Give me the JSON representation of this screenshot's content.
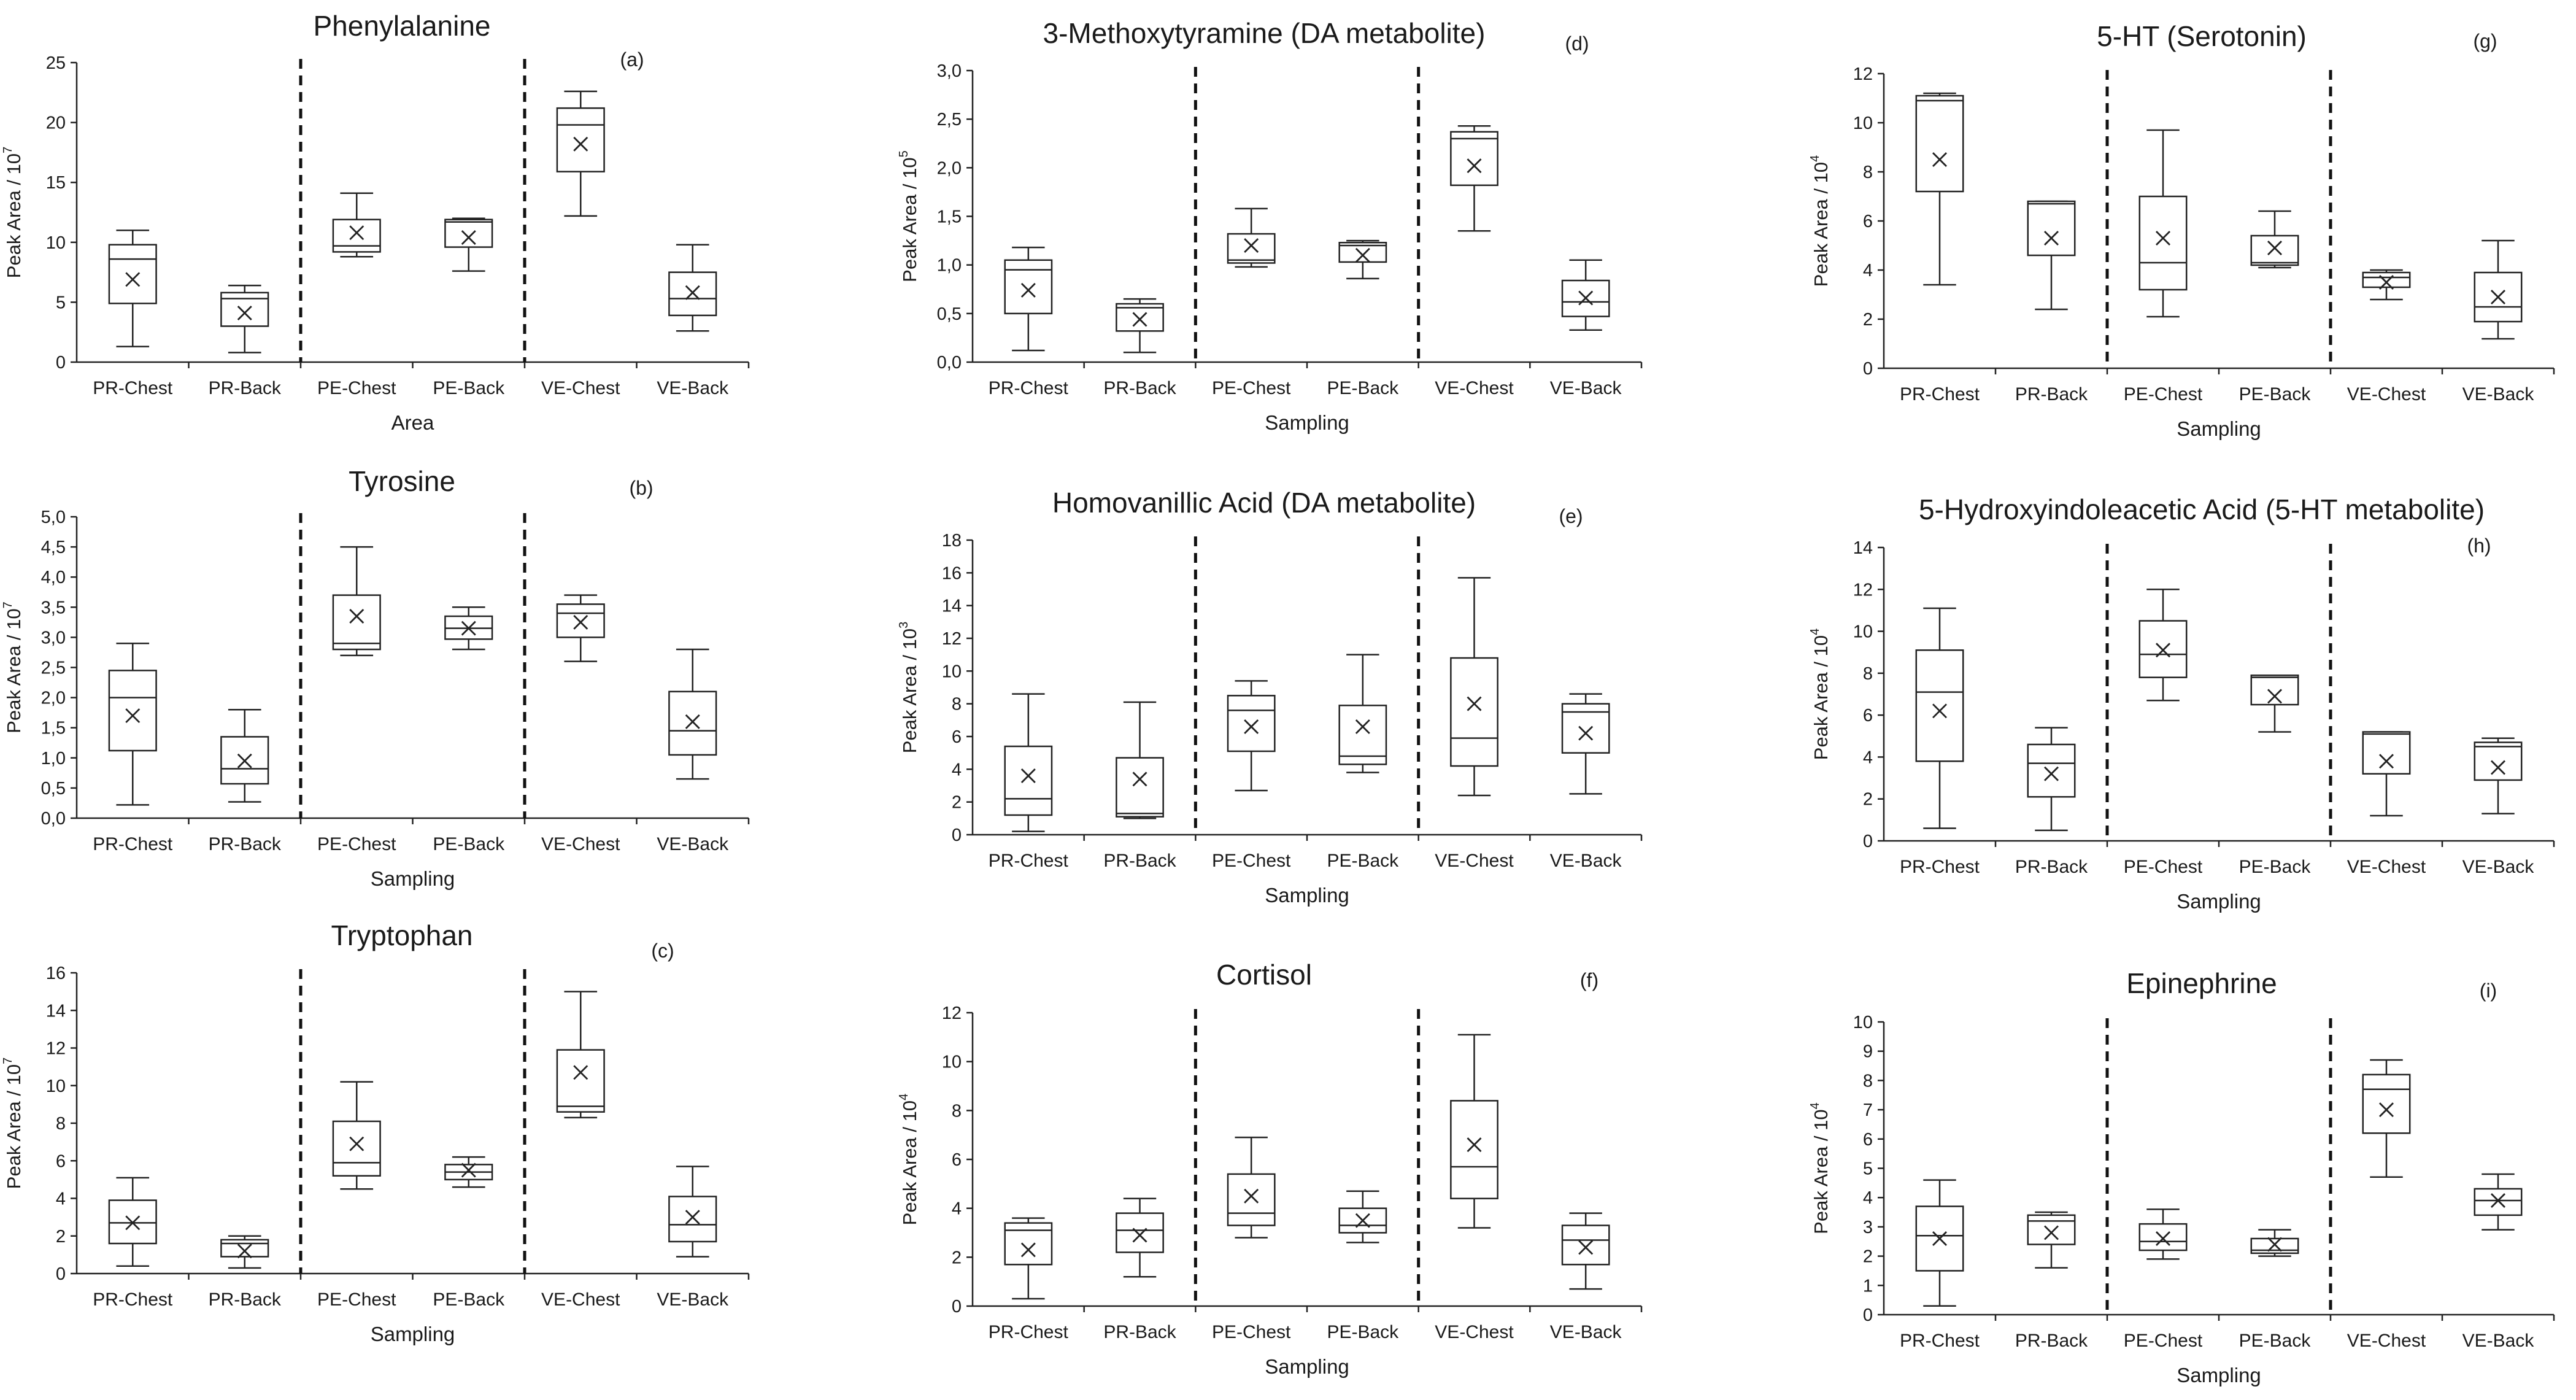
{
  "chart_data": [
    {
      "type": "box",
      "id": "phenylalanine",
      "title": "Phenylalanine",
      "panel": "(a)",
      "xlabel": "Area",
      "ylabel_base": "Peak Area / 10",
      "ylabel_exp": "7",
      "ylim": [
        0,
        25
      ],
      "yticks": [
        "0",
        "5",
        "10",
        "15",
        "20",
        "25"
      ],
      "categories": [
        "PR-Chest",
        "PR-Back",
        "PE-Chest",
        "PE-Back",
        "VE-Chest",
        "VE-Back"
      ],
      "boxes": [
        {
          "min": 1.3,
          "q1": 4.9,
          "median": 8.6,
          "q3": 9.8,
          "max": 11.0,
          "mean": 6.9
        },
        {
          "min": 0.8,
          "q1": 3.0,
          "median": 5.3,
          "q3": 5.8,
          "max": 6.4,
          "mean": 4.1
        },
        {
          "min": 8.8,
          "q1": 9.2,
          "median": 9.7,
          "q3": 11.9,
          "max": 14.1,
          "mean": 10.8
        },
        {
          "min": 7.6,
          "q1": 9.6,
          "median": 11.7,
          "q3": 11.9,
          "max": 12.0,
          "mean": 10.4
        },
        {
          "min": 12.2,
          "q1": 15.9,
          "median": 19.8,
          "q3": 21.2,
          "max": 22.6,
          "mean": 18.2
        },
        {
          "min": 2.6,
          "q1": 3.9,
          "median": 5.3,
          "q3": 7.5,
          "max": 9.8,
          "mean": 5.8
        }
      ]
    },
    {
      "type": "box",
      "id": "tyrosine",
      "title": "Tyrosine",
      "panel": "(b)",
      "xlabel": "Sampling",
      "ylabel_base": "Peak Area / 10",
      "ylabel_exp": "7",
      "ylim": [
        0,
        5.0
      ],
      "yticks": [
        "0,0",
        "0,5",
        "1,0",
        "1,5",
        "2,0",
        "2,5",
        "3,0",
        "3,5",
        "4,0",
        "4,5",
        "5,0"
      ],
      "categories": [
        "PR-Chest",
        "PR-Back",
        "PE-Chest",
        "PE-Back",
        "VE-Chest",
        "VE-Back"
      ],
      "boxes": [
        {
          "min": 0.22,
          "q1": 1.12,
          "median": 2.0,
          "q3": 2.45,
          "max": 2.9,
          "mean": 1.7
        },
        {
          "min": 0.27,
          "q1": 0.57,
          "median": 0.82,
          "q3": 1.35,
          "max": 1.8,
          "mean": 0.95
        },
        {
          "min": 2.7,
          "q1": 2.8,
          "median": 2.9,
          "q3": 3.7,
          "max": 4.5,
          "mean": 3.35
        },
        {
          "min": 2.8,
          "q1": 2.97,
          "median": 3.15,
          "q3": 3.35,
          "max": 3.5,
          "mean": 3.15
        },
        {
          "min": 2.6,
          "q1": 3.0,
          "median": 3.4,
          "q3": 3.55,
          "max": 3.7,
          "mean": 3.25
        },
        {
          "min": 0.65,
          "q1": 1.05,
          "median": 1.45,
          "q3": 2.1,
          "max": 2.8,
          "mean": 1.6
        }
      ]
    },
    {
      "type": "box",
      "id": "tryptophan",
      "title": "Tryptophan",
      "panel": "(c)",
      "xlabel": "Sampling",
      "ylabel_base": "Peak Area / 10",
      "ylabel_exp": "7",
      "ylim": [
        0,
        16
      ],
      "yticks": [
        "0",
        "2",
        "4",
        "6",
        "8",
        "10",
        "12",
        "14",
        "16"
      ],
      "categories": [
        "PR-Chest",
        "PR-Back",
        "PE-Chest",
        "PE-Back",
        "VE-Chest",
        "VE-Back"
      ],
      "boxes": [
        {
          "min": 0.4,
          "q1": 1.6,
          "median": 2.7,
          "q3": 3.9,
          "max": 5.1,
          "mean": 2.7
        },
        {
          "min": 0.3,
          "q1": 0.9,
          "median": 1.6,
          "q3": 1.8,
          "max": 2.0,
          "mean": 1.2
        },
        {
          "min": 4.5,
          "q1": 5.2,
          "median": 5.9,
          "q3": 8.1,
          "max": 10.2,
          "mean": 6.9
        },
        {
          "min": 4.6,
          "q1": 5.0,
          "median": 5.4,
          "q3": 5.8,
          "max": 6.2,
          "mean": 5.5
        },
        {
          "min": 8.3,
          "q1": 8.6,
          "median": 8.9,
          "q3": 11.9,
          "max": 15.0,
          "mean": 10.7
        },
        {
          "min": 0.9,
          "q1": 1.7,
          "median": 2.6,
          "q3": 4.1,
          "max": 5.7,
          "mean": 3.0
        }
      ]
    },
    {
      "type": "box",
      "id": "methoxytyramine",
      "title": "3-Methoxytyramine (DA metabolite)",
      "panel": "(d)",
      "xlabel": "Sampling",
      "ylabel_base": "Peak Area / 10",
      "ylabel_exp": "5",
      "ylim": [
        0,
        3.0
      ],
      "yticks": [
        "0,0",
        "0,5",
        "1,0",
        "1,5",
        "2,0",
        "2,5",
        "3,0"
      ],
      "categories": [
        "PR-Chest",
        "PR-Back",
        "PE-Chest",
        "PE-Back",
        "VE-Chest",
        "VE-Back"
      ],
      "boxes": [
        {
          "min": 0.12,
          "q1": 0.5,
          "median": 0.95,
          "q3": 1.05,
          "max": 1.18,
          "mean": 0.74
        },
        {
          "min": 0.1,
          "q1": 0.32,
          "median": 0.56,
          "q3": 0.6,
          "max": 0.65,
          "mean": 0.44
        },
        {
          "min": 0.98,
          "q1": 1.02,
          "median": 1.05,
          "q3": 1.32,
          "max": 1.58,
          "mean": 1.2
        },
        {
          "min": 0.86,
          "q1": 1.03,
          "median": 1.2,
          "q3": 1.23,
          "max": 1.25,
          "mean": 1.1
        },
        {
          "min": 1.35,
          "q1": 1.82,
          "median": 2.3,
          "q3": 2.37,
          "max": 2.43,
          "mean": 2.02
        },
        {
          "min": 0.33,
          "q1": 0.47,
          "median": 0.62,
          "q3": 0.84,
          "max": 1.05,
          "mean": 0.66
        }
      ]
    },
    {
      "type": "box",
      "id": "homovanillic",
      "title": "Homovanillic Acid (DA metabolite)",
      "panel": "(e)",
      "xlabel": "Sampling",
      "ylabel_base": "Peak Area / 10",
      "ylabel_exp": "3",
      "ylim": [
        0,
        18
      ],
      "yticks": [
        "0",
        "2",
        "4",
        "6",
        "8",
        "10",
        "12",
        "14",
        "16",
        "18"
      ],
      "categories": [
        "PR-Chest",
        "PR-Back",
        "PE-Chest",
        "PE-Back",
        "VE-Chest",
        "VE-Back"
      ],
      "boxes": [
        {
          "min": 0.2,
          "q1": 1.2,
          "median": 2.2,
          "q3": 5.4,
          "max": 8.6,
          "mean": 3.6
        },
        {
          "min": 1.0,
          "q1": 1.1,
          "median": 1.3,
          "q3": 4.7,
          "max": 8.1,
          "mean": 3.4
        },
        {
          "min": 2.7,
          "q1": 5.1,
          "median": 7.6,
          "q3": 8.5,
          "max": 9.4,
          "mean": 6.6
        },
        {
          "min": 3.8,
          "q1": 4.3,
          "median": 4.8,
          "q3": 7.9,
          "max": 11.0,
          "mean": 6.6
        },
        {
          "min": 2.4,
          "q1": 4.2,
          "median": 5.9,
          "q3": 10.8,
          "max": 15.7,
          "mean": 8.0
        },
        {
          "min": 2.5,
          "q1": 5.0,
          "median": 7.5,
          "q3": 8.0,
          "max": 8.6,
          "mean": 6.2
        }
      ]
    },
    {
      "type": "box",
      "id": "cortisol",
      "title": "Cortisol",
      "panel": "(f)",
      "xlabel": "Sampling",
      "ylabel_base": "Peak Area / 10",
      "ylabel_exp": "4",
      "ylim": [
        0,
        12
      ],
      "yticks": [
        "0",
        "2",
        "4",
        "6",
        "8",
        "10",
        "12"
      ],
      "categories": [
        "PR-Chest",
        "PR-Back",
        "PE-Chest",
        "PE-Back",
        "VE-Chest",
        "VE-Back"
      ],
      "boxes": [
        {
          "min": 0.3,
          "q1": 1.7,
          "median": 3.1,
          "q3": 3.4,
          "max": 3.6,
          "mean": 2.3
        },
        {
          "min": 1.2,
          "q1": 2.2,
          "median": 3.1,
          "q3": 3.8,
          "max": 4.4,
          "mean": 2.9
        },
        {
          "min": 2.8,
          "q1": 3.3,
          "median": 3.8,
          "q3": 5.4,
          "max": 6.9,
          "mean": 4.5
        },
        {
          "min": 2.6,
          "q1": 3.0,
          "median": 3.3,
          "q3": 4.0,
          "max": 4.7,
          "mean": 3.5
        },
        {
          "min": 3.2,
          "q1": 4.4,
          "median": 5.7,
          "q3": 8.4,
          "max": 11.1,
          "mean": 6.6
        },
        {
          "min": 0.7,
          "q1": 1.7,
          "median": 2.7,
          "q3": 3.3,
          "max": 3.8,
          "mean": 2.4
        }
      ]
    },
    {
      "type": "box",
      "id": "serotonin",
      "title": "5-HT (Serotonin)",
      "panel": "(g)",
      "xlabel": "Sampling",
      "ylabel_base": "Peak Area / 10",
      "ylabel_exp": "4",
      "ylim": [
        0,
        12
      ],
      "yticks": [
        "0",
        "2",
        "4",
        "6",
        "8",
        "10",
        "12"
      ],
      "categories": [
        "PR-Chest",
        "PR-Back",
        "PE-Chest",
        "PE-Back",
        "VE-Chest",
        "VE-Back"
      ],
      "boxes": [
        {
          "min": 3.4,
          "q1": 7.2,
          "median": 10.9,
          "q3": 11.1,
          "max": 11.2,
          "mean": 8.5
        },
        {
          "min": 2.4,
          "q1": 4.6,
          "median": 6.7,
          "q3": 6.8,
          "max": 6.8,
          "mean": 5.3
        },
        {
          "min": 2.1,
          "q1": 3.2,
          "median": 4.3,
          "q3": 7.0,
          "max": 9.7,
          "mean": 5.3
        },
        {
          "min": 4.1,
          "q1": 4.2,
          "median": 4.3,
          "q3": 5.4,
          "max": 6.4,
          "mean": 4.9
        },
        {
          "min": 2.8,
          "q1": 3.3,
          "median": 3.7,
          "q3": 3.9,
          "max": 4.0,
          "mean": 3.5
        },
        {
          "min": 1.2,
          "q1": 1.9,
          "median": 2.5,
          "q3": 3.9,
          "max": 5.2,
          "mean": 2.9
        }
      ]
    },
    {
      "type": "box",
      "id": "hiaa",
      "title": "5-Hydroxyindoleacetic Acid (5-HT metabolite)",
      "panel": "(h)",
      "xlabel": "Sampling",
      "ylabel_base": "Peak Area / 10",
      "ylabel_exp": "4",
      "ylim": [
        0,
        14
      ],
      "yticks": [
        "0",
        "2",
        "4",
        "6",
        "8",
        "10",
        "12",
        "14"
      ],
      "categories": [
        "PR-Chest",
        "PR-Back",
        "PE-Chest",
        "PE-Back",
        "VE-Chest",
        "VE-Back"
      ],
      "boxes": [
        {
          "min": 0.6,
          "q1": 3.8,
          "median": 7.1,
          "q3": 9.1,
          "max": 11.1,
          "mean": 6.2
        },
        {
          "min": 0.5,
          "q1": 2.1,
          "median": 3.7,
          "q3": 4.6,
          "max": 5.4,
          "mean": 3.2
        },
        {
          "min": 6.7,
          "q1": 7.8,
          "median": 8.9,
          "q3": 10.5,
          "max": 12.0,
          "mean": 9.1
        },
        {
          "min": 5.2,
          "q1": 6.5,
          "median": 7.8,
          "q3": 7.9,
          "max": 7.9,
          "mean": 6.9
        },
        {
          "min": 1.2,
          "q1": 3.2,
          "median": 5.1,
          "q3": 5.2,
          "max": 5.2,
          "mean": 3.8
        },
        {
          "min": 1.3,
          "q1": 2.9,
          "median": 4.5,
          "q3": 4.7,
          "max": 4.9,
          "mean": 3.5
        }
      ]
    },
    {
      "type": "box",
      "id": "epinephrine",
      "title": "Epinephrine",
      "panel": "(i)",
      "xlabel": "Sampling",
      "ylabel_base": "Peak Area / 10",
      "ylabel_exp": "4",
      "ylim": [
        0,
        10
      ],
      "yticks": [
        "0",
        "1",
        "2",
        "3",
        "4",
        "5",
        "6",
        "7",
        "8",
        "9",
        "10"
      ],
      "categories": [
        "PR-Chest",
        "PR-Back",
        "PE-Chest",
        "PE-Back",
        "VE-Chest",
        "VE-Back"
      ],
      "boxes": [
        {
          "min": 0.3,
          "q1": 1.5,
          "median": 2.7,
          "q3": 3.7,
          "max": 4.6,
          "mean": 2.6
        },
        {
          "min": 1.6,
          "q1": 2.4,
          "median": 3.2,
          "q3": 3.4,
          "max": 3.5,
          "mean": 2.8
        },
        {
          "min": 1.9,
          "q1": 2.2,
          "median": 2.5,
          "q3": 3.1,
          "max": 3.6,
          "mean": 2.6
        },
        {
          "min": 2.0,
          "q1": 2.1,
          "median": 2.2,
          "q3": 2.6,
          "max": 2.9,
          "mean": 2.4
        },
        {
          "min": 4.7,
          "q1": 6.2,
          "median": 7.7,
          "q3": 8.2,
          "max": 8.7,
          "mean": 7.0
        },
        {
          "min": 2.9,
          "q1": 3.4,
          "median": 3.9,
          "q3": 4.3,
          "max": 4.8,
          "mean": 3.9
        }
      ]
    }
  ]
}
